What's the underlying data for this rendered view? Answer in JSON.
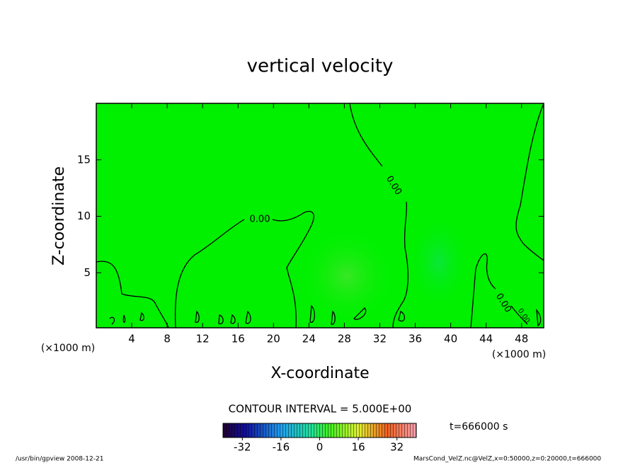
{
  "chart_data": {
    "type": "contour",
    "title": "vertical velocity",
    "x_label": "X-coordinate",
    "y_label": "Z-coordinate",
    "x_unit_labels": [
      "(×1000 m)",
      "(×1000 m)"
    ],
    "xlim": [
      0,
      50.5
    ],
    "xticks": [
      4,
      8,
      12,
      16,
      20,
      24,
      28,
      32,
      36,
      40,
      44,
      48
    ],
    "ylim": [
      0,
      20
    ],
    "yticks": [
      5,
      10,
      15
    ],
    "contour_labels": [
      "0.00",
      "0.00",
      "0.00",
      "0.00"
    ],
    "contour_interval": "CONTOUR INTERVAL = 5.000E+00",
    "colorbar": {
      "lim": [
        -40,
        40
      ],
      "ticks": [
        -32,
        -16,
        0,
        16,
        32
      ]
    },
    "time_label": "t=666000 s",
    "footer_left": "/usr/bin/gpview  2008-12-21",
    "footer_right": "MarsCond_VelZ.nc@VelZ,x=0:50000,z=0:20000,t=666000"
  }
}
